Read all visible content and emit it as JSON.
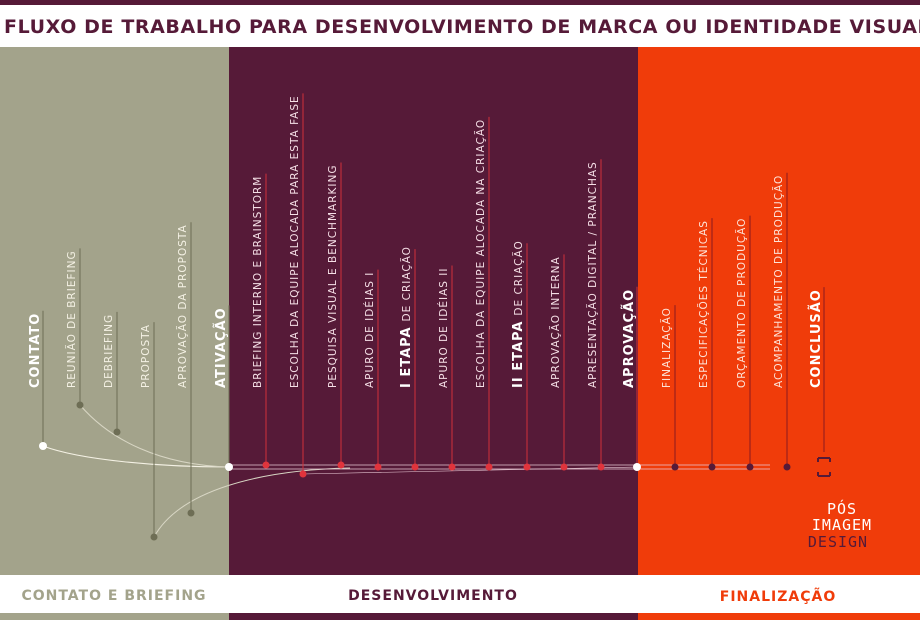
{
  "header": {
    "title": "FLUXO DE TRABALHO PARA DESENVOLVIMENTO DE MARCA OU IDENTIDADE VISUAL"
  },
  "phases": [
    {
      "name": "CONTATO E BRIEFING",
      "steps": [
        {
          "text": "CONTATO",
          "major": true
        },
        {
          "text": "REUNIÃO DE BRIEFING"
        },
        {
          "text": "DEBRIEFING"
        },
        {
          "text": "PROPOSTA"
        },
        {
          "text": "APROVAÇÃO DA PROPOSTA"
        },
        {
          "text": "ATIVAÇÃO",
          "major": true
        }
      ]
    },
    {
      "name": "DESENVOLVIMENTO",
      "steps": [
        {
          "text": "BRIEFING INTERNO E BRAINSTORM"
        },
        {
          "text": "ESCOLHA DA EQUIPE ALOCADA PARA ESTA FASE"
        },
        {
          "text": "PESQUISA VISUAL E BENCHMARKING"
        },
        {
          "text": "APURO DE IDÉIAS I"
        },
        {
          "prefix": "I ETAPA",
          "text": "DE CRIAÇÃO"
        },
        {
          "text": "APURO DE IDÉIAS II"
        },
        {
          "text": "ESCOLHA DA EQUIPE ALOCADA NA CRIAÇÃO"
        },
        {
          "prefix": "II ETAPA",
          "text": "DE CRIAÇÃO"
        },
        {
          "text": "APROVAÇÃO INTERNA"
        },
        {
          "text": "APRESENTAÇÃO DIGITAL / PRANCHAS"
        },
        {
          "text": "APROVAÇÃO",
          "major": true
        }
      ]
    },
    {
      "name": "FINALIZAÇÃO",
      "steps": [
        {
          "text": "FINALIZAÇÃO"
        },
        {
          "text": "ESPECIFICAÇÕES TÉCNICAS"
        },
        {
          "text": "ORÇAMENTO DE PRODUÇÃO"
        },
        {
          "text": "ACOMPANHAMENTO DE PRODUÇÃO"
        },
        {
          "text": "CONCLUSÃO",
          "major": true
        }
      ]
    }
  ],
  "logo": {
    "lines": [
      "PÓS",
      "IMAGEM",
      "DESIGN"
    ]
  }
}
